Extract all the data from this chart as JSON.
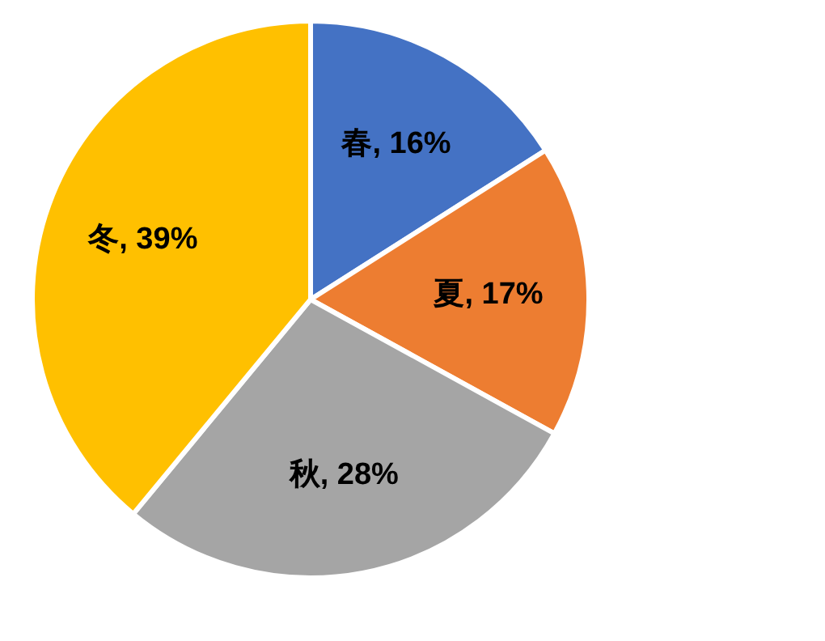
{
  "chart_data": {
    "type": "pie",
    "categories": [
      "春",
      "夏",
      "秋",
      "冬"
    ],
    "values": [
      16,
      17,
      28,
      39
    ],
    "colors": [
      "#4472c4",
      "#ed7d31",
      "#a5a5a5",
      "#ffc000"
    ],
    "value_labels": [
      ", 16%",
      ", 17%",
      ", 28%",
      ", 39%"
    ]
  }
}
